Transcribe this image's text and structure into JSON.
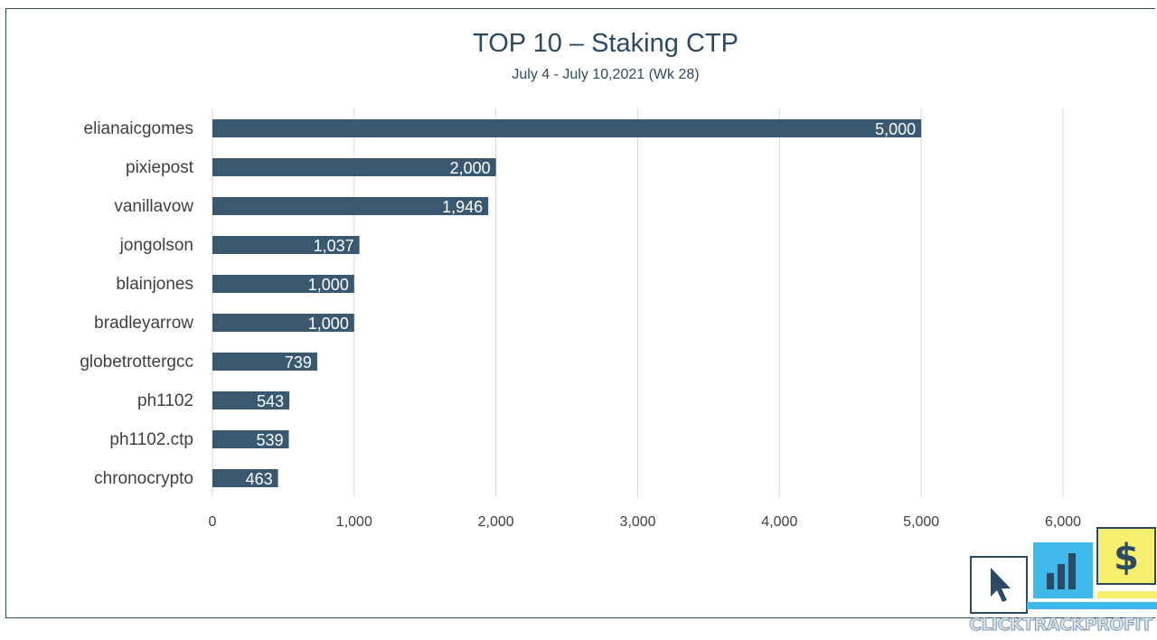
{
  "chart_data": {
    "type": "bar",
    "orientation": "horizontal",
    "title": "TOP 10 – Staking CTP",
    "subtitle": "July 4 - July 10,2021 (Wk 28)",
    "categories": [
      "elianaicgomes",
      "pixiepost",
      "vanillavow",
      "jongolson",
      "blainjones",
      "bradleyarrow",
      "globetrottergcc",
      "ph1102",
      "ph1102.ctp",
      "chronocrypto"
    ],
    "values": [
      5000,
      2000,
      1946,
      1037,
      1000,
      1000,
      739,
      543,
      539,
      463
    ],
    "value_labels": [
      "5,000",
      "2,000",
      "1,946",
      "1,037",
      "1,000",
      "1,000",
      "739",
      "543",
      "539",
      "463"
    ],
    "xlim": [
      0,
      6000
    ],
    "x_ticks": [
      0,
      1000,
      2000,
      3000,
      4000,
      5000,
      6000
    ],
    "x_tick_labels": [
      "0",
      "1,000",
      "2,000",
      "3,000",
      "4,000",
      "5,000",
      "6,000"
    ],
    "grid": true,
    "legend": "none",
    "bar_color": "#3a5870"
  },
  "logo": {
    "text": "CLICKTRACKPROFIT",
    "icons": [
      "cursor-icon",
      "bar-chart-icon",
      "dollar-icon"
    ]
  }
}
